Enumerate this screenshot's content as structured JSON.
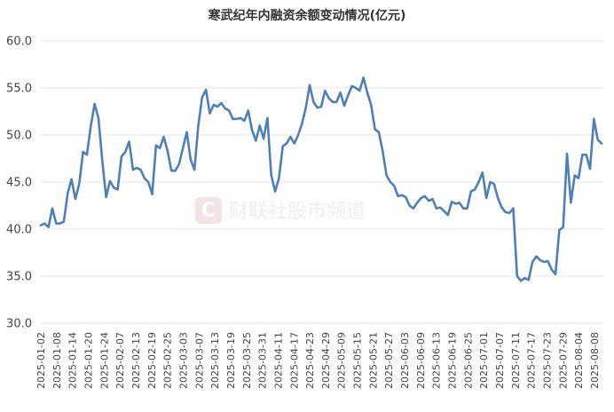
{
  "watermark": {
    "text": "财联社股市频道",
    "logo_letter": "C"
  },
  "chart_data": {
    "type": "line",
    "title": "寒武纪年内融资余额变动情况(亿元)",
    "xlabel": "",
    "ylabel": "",
    "ylim": [
      30,
      60
    ],
    "yticks": [
      "30.0",
      "35.0",
      "40.0",
      "45.0",
      "50.0",
      "55.0",
      "60.0"
    ],
    "grid": true,
    "line_color": "#4e7fb7",
    "x_tick_labels": [
      "2025-01-02",
      "2025-01-08",
      "2025-01-14",
      "2025-01-20",
      "2025-01-24",
      "2025-02-07",
      "2025-02-13",
      "2025-02-19",
      "2025-02-25",
      "2025-03-03",
      "2025-03-07",
      "2025-03-13",
      "2025-03-19",
      "2025-03-25",
      "2025-03-31",
      "2025-04-11",
      "2025-04-17",
      "2025-04-23",
      "2025-04-29",
      "2025-05-09",
      "2025-05-15",
      "2025-05-21",
      "2025-05-27",
      "2025-06-03",
      "2025-06-09",
      "2025-06-13",
      "2025-06-19",
      "2025-06-25",
      "2025-07-01",
      "2025-07-07",
      "2025-07-11",
      "2025-07-17",
      "2025-07-23",
      "2025-07-29",
      "2025-08-04",
      "2025-08-08"
    ],
    "values": [
      40.4,
      40.6,
      40.2,
      42.2,
      40.6,
      40.6,
      40.8,
      43.8,
      45.3,
      43.2,
      44.8,
      48.2,
      47.9,
      50.9,
      53.3,
      51.8,
      47.3,
      43.4,
      45.1,
      44.4,
      44.2,
      47.7,
      48.2,
      49.3,
      46.3,
      46.5,
      46.3,
      45.4,
      45.0,
      43.7,
      48.9,
      48.6,
      49.8,
      48.3,
      46.2,
      46.2,
      46.9,
      48.6,
      50.3,
      47.4,
      46.3,
      51.0,
      54.0,
      54.8,
      52.3,
      53.2,
      53.0,
      53.4,
      52.8,
      52.6,
      51.7,
      51.7,
      51.8,
      51.5,
      52.6,
      50.5,
      49.4,
      51.0,
      49.6,
      51.8,
      45.7,
      44.0,
      45.4,
      48.8,
      49.1,
      49.8,
      49.1,
      50.0,
      51.2,
      52.9,
      55.3,
      53.5,
      52.9,
      53.0,
      54.7,
      53.9,
      53.5,
      53.5,
      54.5,
      53.1,
      54.2,
      55.2,
      55.0,
      54.7,
      56.1,
      54.5,
      53.2,
      50.6,
      50.3,
      48.3,
      45.7,
      45.0,
      44.6,
      43.5,
      43.6,
      43.4,
      42.5,
      42.2,
      42.8,
      43.3,
      43.5,
      43.0,
      43.2,
      42.2,
      42.3,
      41.9,
      41.5,
      42.9,
      42.7,
      42.8,
      42.2,
      42.2,
      44.0,
      44.2,
      45.0,
      46.0,
      43.3,
      45.0,
      44.8,
      43.3,
      42.3,
      41.8,
      41.7,
      42.2,
      35.0,
      34.5,
      34.8,
      34.6,
      36.5,
      37.1,
      36.7,
      36.5,
      36.6,
      35.7,
      35.2,
      39.9,
      40.2,
      48.0,
      42.8,
      45.7,
      45.4,
      47.9,
      47.9,
      46.4,
      51.7,
      49.5,
      49.1
    ]
  }
}
